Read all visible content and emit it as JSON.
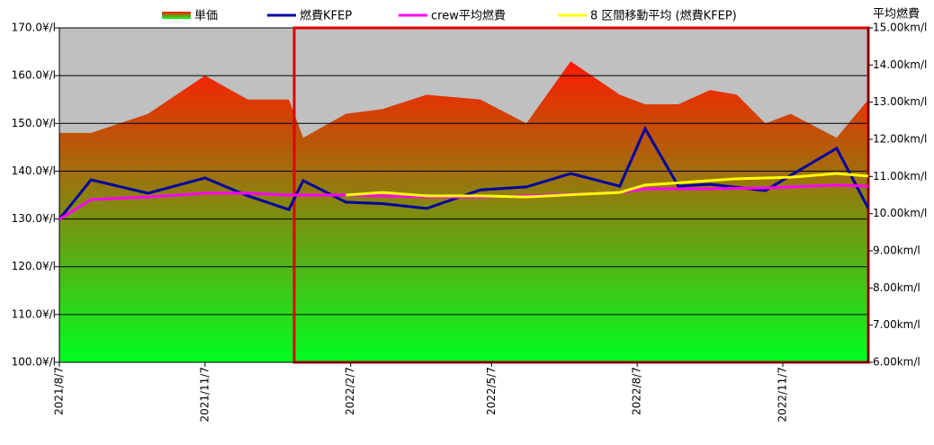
{
  "chart_data": {
    "type": "line",
    "x": [
      "2021/8/7",
      "2021/8/27",
      "2021/10/2",
      "2021/11/7",
      "2021/12/4",
      "2021/12/30",
      "2022/1/8",
      "2022/2/4",
      "2022/2/27",
      "2022/3/27",
      "2022/4/30",
      "2022/5/29",
      "2022/6/26",
      "2022/7/27",
      "2022/8/12",
      "2022/9/2",
      "2022/9/22",
      "2022/10/9",
      "2022/10/27",
      "2022/11/12",
      "2022/12/11",
      "2022/12/31"
    ],
    "xlim": [
      "2021/8/7",
      "2022/12/31"
    ],
    "xticks": [
      "2021/8/7",
      "2021/11/7",
      "2022/2/7",
      "2022/5/7",
      "2022/8/7",
      "2022/11/7"
    ],
    "ylim": [
      100,
      170
    ],
    "yticks": [
      {
        "value": 100,
        "label": "100.0¥/l"
      },
      {
        "value": 110,
        "label": "110.0¥/l"
      },
      {
        "value": 120,
        "label": "120.0¥/l"
      },
      {
        "value": 130,
        "label": "130.0¥/l"
      },
      {
        "value": 140,
        "label": "140.0¥/l"
      },
      {
        "value": 150,
        "label": "150.0¥/l"
      },
      {
        "value": 160,
        "label": "160.0¥/l"
      },
      {
        "value": 170,
        "label": "170.0¥/l"
      }
    ],
    "y2label": "平均燃費",
    "y2lim": [
      6,
      15
    ],
    "y2ticks": [
      {
        "value": 6,
        "label": "6.00km/l"
      },
      {
        "value": 7,
        "label": "7.00km/l"
      },
      {
        "value": 8,
        "label": "8.00km/l"
      },
      {
        "value": 9,
        "label": "9.00km/l"
      },
      {
        "value": 10,
        "label": "10.00km/l"
      },
      {
        "value": 11,
        "label": "11.00km/l"
      },
      {
        "value": 12,
        "label": "12.00km/l"
      },
      {
        "value": 13,
        "label": "13.00km/l"
      },
      {
        "value": 14,
        "label": "14.00km/l"
      },
      {
        "value": 15,
        "label": "15.00km/l"
      }
    ],
    "grid": true,
    "background": "#c0c0c0",
    "series": [
      {
        "name": "単価",
        "type": "area",
        "gradient": [
          "#ff1a00",
          "#00ff20"
        ],
        "values": [
          148,
          148,
          152,
          160,
          155,
          155,
          147,
          152,
          153,
          156,
          155,
          150,
          163,
          156,
          154,
          154,
          157,
          156,
          150,
          152,
          147,
          155
        ]
      },
      {
        "name": "燃費KFEP",
        "type": "line",
        "axis": "y2",
        "color": "#0000a0",
        "values": [
          9.85,
          10.91,
          10.55,
          10.96,
          10.48,
          10.11,
          10.89,
          10.31,
          10.27,
          10.14,
          10.64,
          10.72,
          11.08,
          10.74,
          12.29,
          10.74,
          10.79,
          10.71,
          10.62,
          11.03,
          11.76,
          10.14
        ]
      },
      {
        "name": "crew平均燃費",
        "type": "line",
        "axis": "y2",
        "color": "#ff00ff",
        "values": [
          9.85,
          10.38,
          10.45,
          10.55,
          10.55,
          10.5,
          10.5,
          10.5,
          10.48,
          10.45,
          10.45,
          10.48,
          10.52,
          10.57,
          10.67,
          10.67,
          10.67,
          10.68,
          10.69,
          10.72,
          10.77,
          10.74
        ]
      },
      {
        "name": "8 区間移動平均 (燃費KFEP)",
        "type": "line",
        "axis": "y2",
        "color": "#ffff00",
        "values": [
          null,
          null,
          null,
          null,
          null,
          null,
          null,
          10.5,
          10.57,
          10.48,
          10.48,
          10.45,
          10.51,
          10.57,
          10.77,
          10.83,
          10.89,
          10.94,
          10.96,
          10.98,
          11.08,
          11.01
        ]
      }
    ]
  }
}
